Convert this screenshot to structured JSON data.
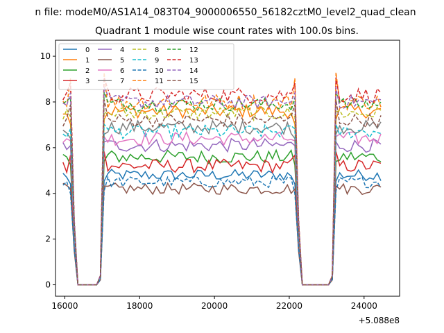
{
  "chart_data": {
    "type": "line",
    "suptitle": "n file: modeM0/AS1A14_083T04_9000006550_56182cztM0_level2_quad_clean",
    "title": "Quadrant 1 module wise count rates with 100.0s bins.",
    "xlabel": "",
    "ylabel": "",
    "offset_text": "+5.088e8",
    "xlim": [
      15750,
      24950
    ],
    "ylim": [
      -0.5,
      10.7
    ],
    "x_ticks": [
      16000,
      18000,
      20000,
      22000,
      24000
    ],
    "x_tick_labels": [
      "16000",
      "18000",
      "20000",
      "22000",
      "24000"
    ],
    "y_ticks": [
      0,
      2,
      4,
      6,
      8,
      10
    ],
    "y_tick_labels": [
      "0",
      "2",
      "4",
      "6",
      "8",
      "10"
    ],
    "legend_position": "top-left",
    "gaps": [
      [
        16200,
        16950
      ],
      [
        22250,
        23200
      ]
    ],
    "x_range": [
      15950,
      24520
    ],
    "series": [
      {
        "name": "0",
        "level": 4.8,
        "noise": 0.25,
        "spike": 4.2,
        "color": "#1f77b4",
        "dash": false
      },
      {
        "name": "1",
        "level": 7.6,
        "noise": 0.3,
        "spike": 6.7,
        "color": "#ff7f0e",
        "dash": false
      },
      {
        "name": "2",
        "level": 5.6,
        "noise": 0.3,
        "spike": 5.0,
        "color": "#2ca02c",
        "dash": false
      },
      {
        "name": "3",
        "level": 5.2,
        "noise": 0.3,
        "spike": 5.4,
        "color": "#d62728",
        "dash": false
      },
      {
        "name": "4",
        "level": 6.1,
        "noise": 0.3,
        "spike": 5.8,
        "color": "#9467bd",
        "dash": false
      },
      {
        "name": "5",
        "level": 4.2,
        "noise": 0.25,
        "spike": 4.0,
        "color": "#8c564b",
        "dash": false
      },
      {
        "name": "6",
        "level": 6.4,
        "noise": 0.3,
        "spike": 6.0,
        "color": "#e377c2",
        "dash": false
      },
      {
        "name": "7",
        "level": 6.9,
        "noise": 0.3,
        "spike": 6.1,
        "color": "#7f7f7f",
        "dash": false
      },
      {
        "name": "8",
        "level": 7.5,
        "noise": 0.3,
        "spike": 7.0,
        "color": "#bcbd22",
        "dash": true
      },
      {
        "name": "9",
        "level": 6.7,
        "noise": 0.3,
        "spike": 6.5,
        "color": "#17becf",
        "dash": true
      },
      {
        "name": "10",
        "level": 4.5,
        "noise": 0.25,
        "spike": 3.8,
        "color": "#1f77b4",
        "dash": true
      },
      {
        "name": "11",
        "level": 8.0,
        "noise": 0.35,
        "spike": 8.6,
        "color": "#ff7f0e",
        "dash": true
      },
      {
        "name": "12",
        "level": 7.9,
        "noise": 0.3,
        "spike": 7.8,
        "color": "#2ca02c",
        "dash": true
      },
      {
        "name": "13",
        "level": 8.3,
        "noise": 0.35,
        "spike": 8.4,
        "color": "#d62728",
        "dash": true
      },
      {
        "name": "14",
        "level": 8.0,
        "noise": 0.3,
        "spike": 8.0,
        "color": "#9467bd",
        "dash": true
      },
      {
        "name": "15",
        "level": 7.2,
        "noise": 0.3,
        "spike": 7.5,
        "color": "#8c564b",
        "dash": true
      }
    ]
  }
}
